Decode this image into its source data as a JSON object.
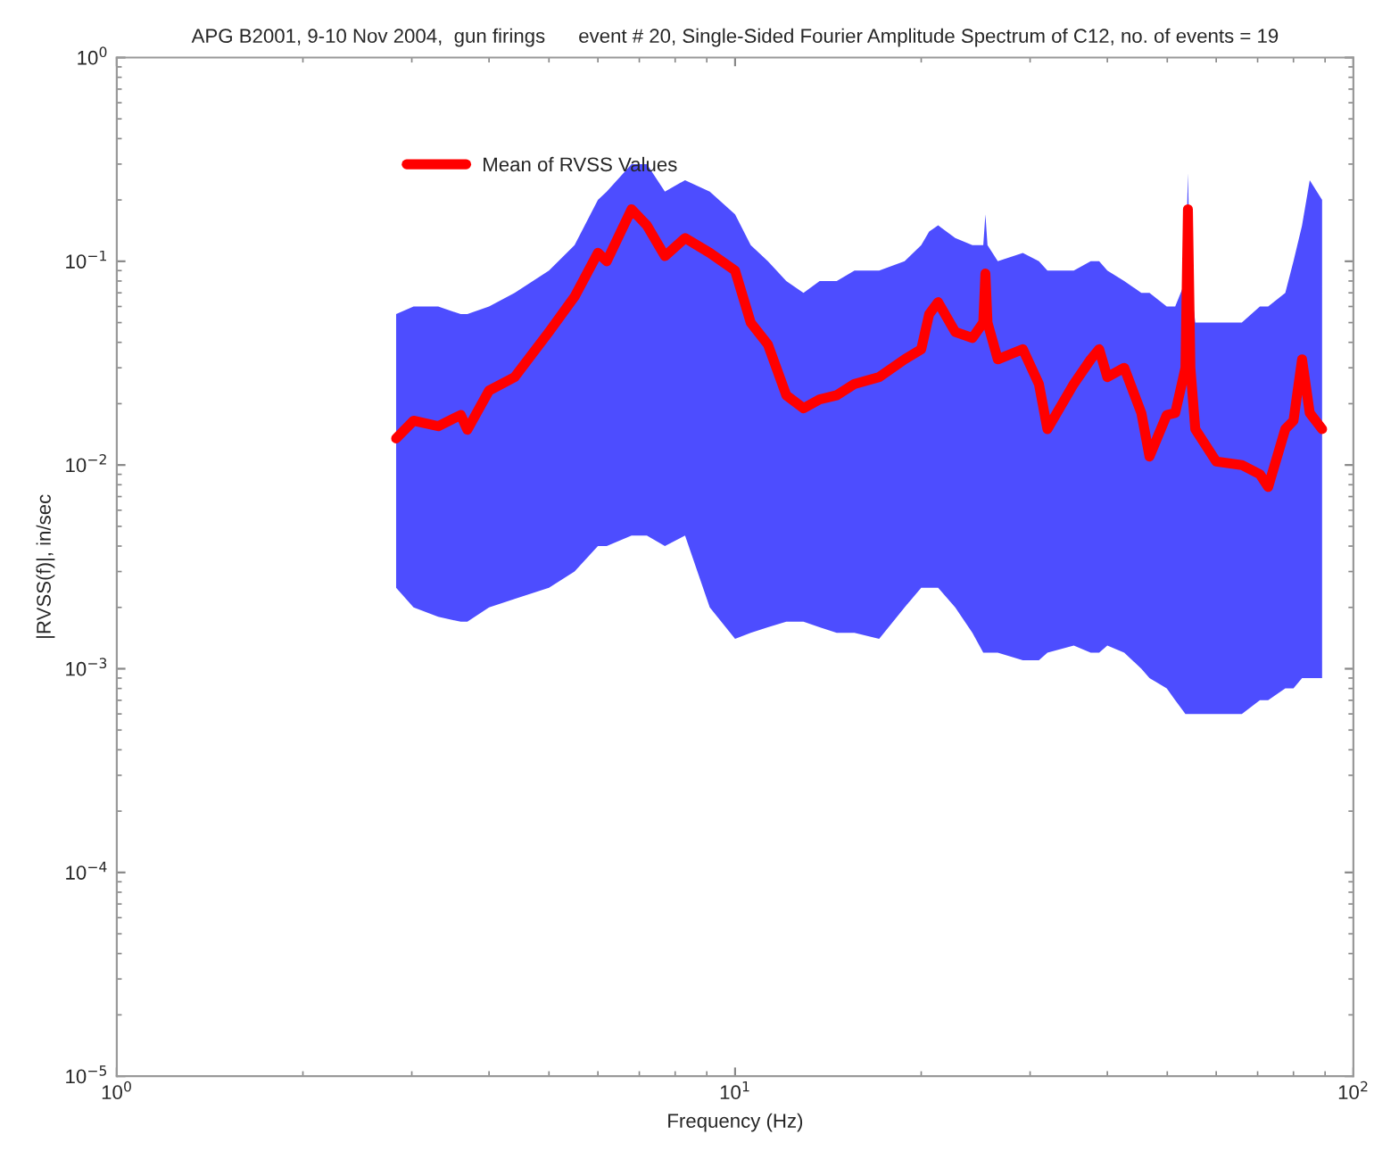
{
  "chart_data": {
    "type": "line",
    "title": "APG B2001, 9-10 Nov 2004,  gun firings      event # 20, Single-Sided Fourier Amplitude Spectrum of C12, no. of events = 19",
    "xlabel": "Frequency (Hz)",
    "ylabel": "|RVSS(f)|, in/sec",
    "log": "xy",
    "xlim": [
      1,
      100
    ],
    "ylim": [
      1e-05,
      1
    ],
    "xticks": [
      {
        "value": 1,
        "label": "10$^{0}$"
      },
      {
        "value": 10,
        "label": "10$^{1}$"
      },
      {
        "value": 100,
        "label": "10$^{2}$"
      }
    ],
    "yticks": [
      {
        "value": 1e-05,
        "label": "10$^{−5}$"
      },
      {
        "value": 0.0001,
        "label": "10$^{−4}$"
      },
      {
        "value": 0.001,
        "label": "10$^{−3}$"
      },
      {
        "value": 0.01,
        "label": "10$^{−2}$"
      },
      {
        "value": 0.1,
        "label": "10$^{−1}$"
      },
      {
        "value": 1,
        "label": "10$^{0}$"
      }
    ],
    "grid": false,
    "legend": "top left",
    "marker": "none",
    "line_style": "solid",
    "series": [
      {
        "name": "Mean of RVSS Values",
        "color": "#ff0000",
        "x": [
          2.83,
          3.02,
          3.31,
          3.6,
          3.69,
          4.0,
          4.4,
          5.0,
          5.5,
          6.0,
          6.2,
          6.8,
          7.2,
          7.7,
          8.3,
          9.1,
          10,
          10.6,
          11.3,
          12.1,
          12.9,
          13.7,
          14.6,
          15.6,
          17.1,
          18.8,
          20,
          20.6,
          21.3,
          22.7,
          24.2,
          25.2,
          25.4,
          25.6,
          26.6,
          29.2,
          31,
          32,
          35.3,
          37.6,
          38.8,
          40,
          42.6,
          45.4,
          46.8,
          49.9,
          51.5,
          53.5,
          54,
          54.5,
          55.5,
          60,
          66,
          70.6,
          72.8,
          77.6,
          80,
          82.6,
          85,
          89
        ],
        "values": [
          0.0135,
          0.0165,
          0.0155,
          0.0176,
          0.0149,
          0.0232,
          0.027,
          0.045,
          0.067,
          0.11,
          0.1,
          0.18,
          0.15,
          0.106,
          0.13,
          0.11,
          0.09,
          0.05,
          0.039,
          0.022,
          0.019,
          0.021,
          0.022,
          0.025,
          0.027,
          0.033,
          0.037,
          0.055,
          0.063,
          0.045,
          0.042,
          0.05,
          0.087,
          0.05,
          0.033,
          0.037,
          0.025,
          0.015,
          0.025,
          0.033,
          0.037,
          0.027,
          0.03,
          0.018,
          0.011,
          0.0176,
          0.018,
          0.03,
          0.18,
          0.03,
          0.015,
          0.0104,
          0.01,
          0.009,
          0.0078,
          0.015,
          0.0165,
          0.033,
          0.018,
          0.015
        ],
        "upper": [
          0.055,
          0.06,
          0.06,
          0.055,
          0.055,
          0.06,
          0.07,
          0.09,
          0.12,
          0.2,
          0.22,
          0.3,
          0.3,
          0.22,
          0.25,
          0.22,
          0.17,
          0.12,
          0.1,
          0.08,
          0.07,
          0.08,
          0.08,
          0.09,
          0.09,
          0.1,
          0.12,
          0.14,
          0.15,
          0.13,
          0.12,
          0.12,
          0.17,
          0.12,
          0.1,
          0.11,
          0.1,
          0.09,
          0.09,
          0.1,
          0.1,
          0.09,
          0.08,
          0.07,
          0.07,
          0.06,
          0.06,
          0.08,
          0.27,
          0.08,
          0.05,
          0.05,
          0.05,
          0.06,
          0.06,
          0.07,
          0.1,
          0.15,
          0.25,
          0.2
        ],
        "lower": [
          0.0025,
          0.002,
          0.0018,
          0.0017,
          0.0017,
          0.002,
          0.0022,
          0.0025,
          0.003,
          0.004,
          0.004,
          0.0045,
          0.0045,
          0.004,
          0.0045,
          0.002,
          0.0014,
          0.0015,
          0.0016,
          0.0017,
          0.0017,
          0.0016,
          0.0015,
          0.0015,
          0.0014,
          0.002,
          0.0025,
          0.0025,
          0.0025,
          0.002,
          0.0015,
          0.0012,
          0.0012,
          0.0012,
          0.0012,
          0.0011,
          0.0011,
          0.0012,
          0.0013,
          0.0012,
          0.0012,
          0.0013,
          0.0012,
          0.001,
          0.0009,
          0.0008,
          0.0007,
          0.0006,
          0.0006,
          0.0006,
          0.0006,
          0.0006,
          0.0006,
          0.0007,
          0.0007,
          0.0008,
          0.0008,
          0.0009,
          0.0009,
          0.0009
        ]
      }
    ]
  }
}
